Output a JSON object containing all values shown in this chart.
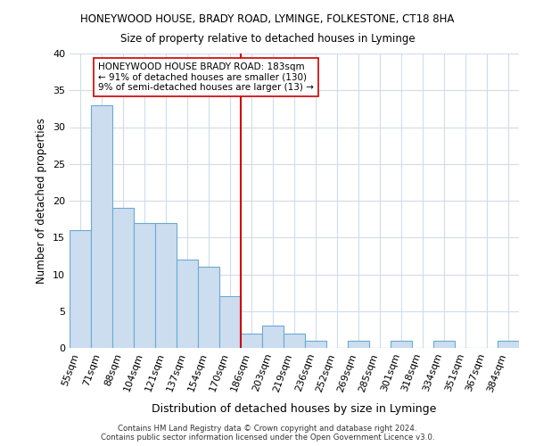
{
  "title_line1": "HONEYWOOD HOUSE, BRADY ROAD, LYMINGE, FOLKESTONE, CT18 8HA",
  "title_line2": "Size of property relative to detached houses in Lyminge",
  "xlabel": "Distribution of detached houses by size in Lyminge",
  "ylabel": "Number of detached properties",
  "categories": [
    "55sqm",
    "71sqm",
    "88sqm",
    "104sqm",
    "121sqm",
    "137sqm",
    "154sqm",
    "170sqm",
    "186sqm",
    "203sqm",
    "219sqm",
    "236sqm",
    "252sqm",
    "269sqm",
    "285sqm",
    "301sqm",
    "318sqm",
    "334sqm",
    "351sqm",
    "367sqm",
    "384sqm"
  ],
  "values": [
    16,
    33,
    19,
    17,
    17,
    12,
    11,
    7,
    2,
    3,
    2,
    1,
    0,
    1,
    0,
    1,
    0,
    1,
    0,
    0,
    1
  ],
  "bar_color": "#ccddf0",
  "bar_edge_color": "#6aaad4",
  "vline_color": "#cc0000",
  "ylim": [
    0,
    40
  ],
  "yticks": [
    0,
    5,
    10,
    15,
    20,
    25,
    30,
    35,
    40
  ],
  "annotation_title": "HONEYWOOD HOUSE BRADY ROAD: 183sqm",
  "annotation_line1": "← 91% of detached houses are smaller (130)",
  "annotation_line2": "9% of semi-detached houses are larger (13) →",
  "annotation_box_color": "#ffffff",
  "annotation_box_edge": "#cc0000",
  "footer_line1": "Contains HM Land Registry data © Crown copyright and database right 2024.",
  "footer_line2": "Contains public sector information licensed under the Open Government Licence v3.0.",
  "background_color": "#ffffff",
  "grid_color": "#d0dce8",
  "vline_index": 8
}
